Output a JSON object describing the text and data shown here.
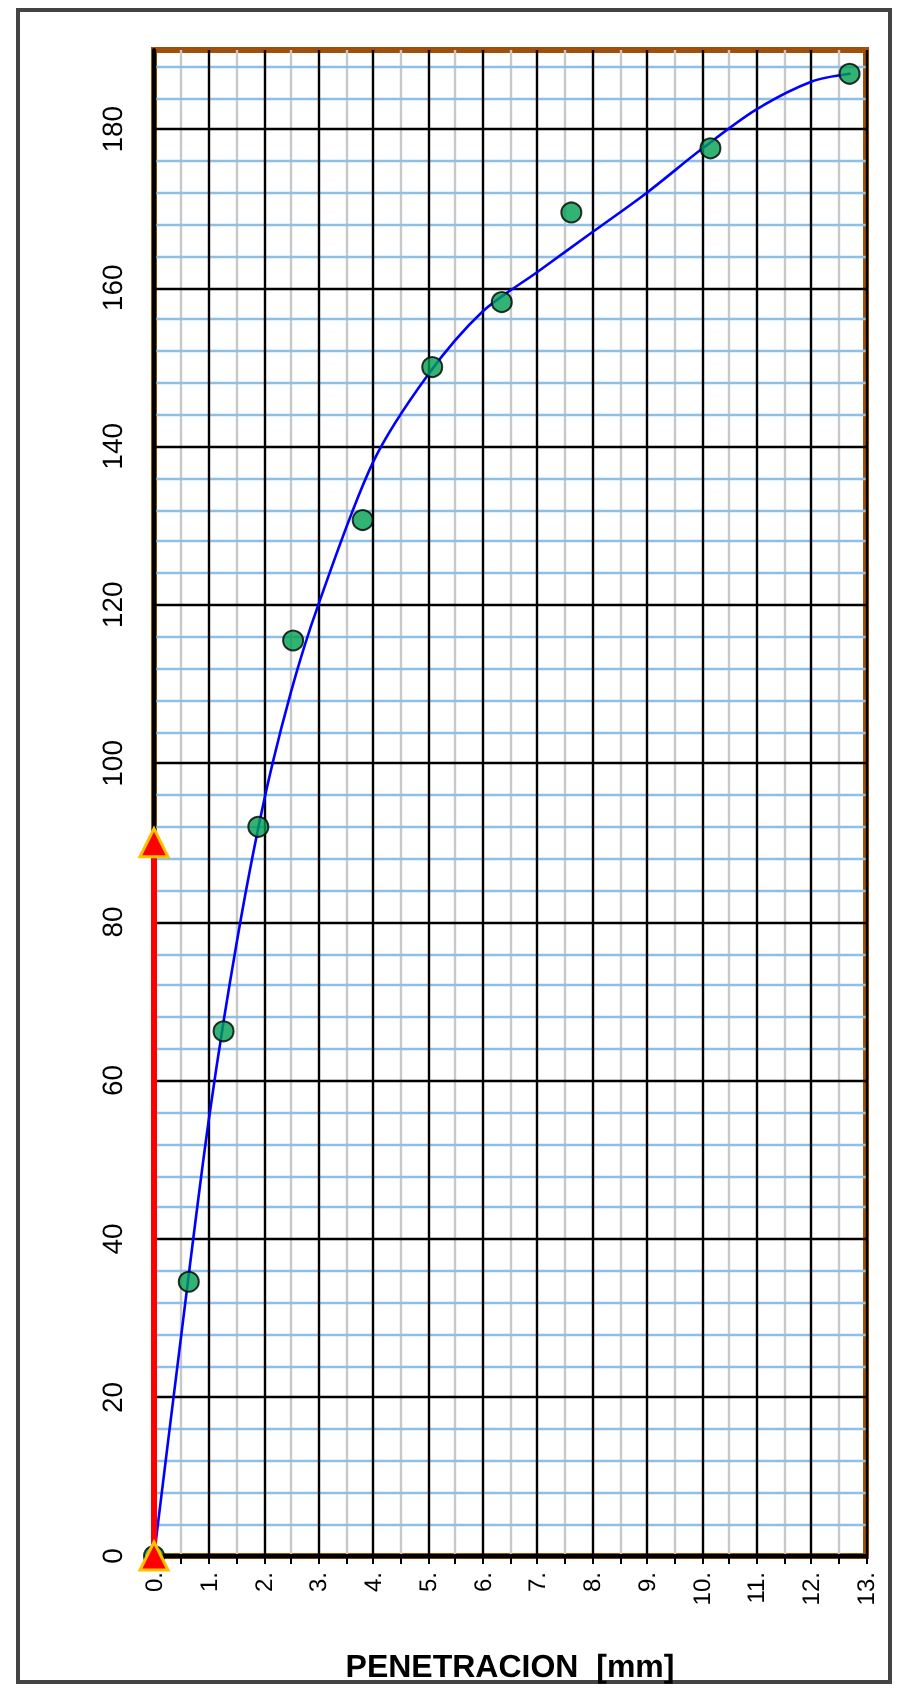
{
  "chart_data": {
    "type": "scatter",
    "xlabel": "PENETRACION  [mm]",
    "series": [
      {
        "type": "line",
        "color": "#0000ff",
        "marker": "none",
        "x": [
          0,
          0.5,
          1,
          1.5,
          2,
          2.5,
          3,
          4,
          5,
          6,
          7,
          8,
          9,
          10,
          11,
          12,
          12.7
        ],
        "values": [
          0,
          28,
          55,
          77,
          95,
          109,
          120,
          138,
          149,
          157,
          162,
          167,
          172,
          177.5,
          182.5,
          186,
          187
        ]
      },
      {
        "color": "#00a050",
        "marker": "circle",
        "x": [
          0,
          0.635,
          1.27,
          1.905,
          2.54,
          3.81,
          5.08,
          6.35,
          7.62,
          10.16,
          12.7
        ],
        "values": [
          0,
          34.6,
          66.2,
          92,
          115.5,
          130.7,
          150,
          158.2,
          169.5,
          177.6,
          187
        ]
      },
      {
        "type": "line",
        "color": "#ff0000",
        "marker": "triangle",
        "x": [
          0,
          0
        ],
        "values": [
          0,
          90
        ]
      }
    ],
    "xlim": [
      0,
      13
    ],
    "ylim": [
      0,
      190
    ],
    "xticks": [
      {
        "value": 0,
        "label": "0."
      },
      {
        "value": 0.5,
        "label": null
      },
      {
        "value": 1,
        "label": "1."
      },
      {
        "value": 1.5,
        "label": null
      },
      {
        "value": 2,
        "label": "2."
      },
      {
        "value": 2.5,
        "label": null
      },
      {
        "value": 3,
        "label": "3."
      },
      {
        "value": 3.5,
        "label": null
      },
      {
        "value": 4,
        "label": "4."
      },
      {
        "value": 4.5,
        "label": null
      },
      {
        "value": 5,
        "label": "5."
      },
      {
        "value": 5.5,
        "label": null
      },
      {
        "value": 6,
        "label": "6."
      },
      {
        "value": 6.5,
        "label": null
      },
      {
        "value": 7,
        "label": "7."
      },
      {
        "value": 7.5,
        "label": null
      },
      {
        "value": 8,
        "label": "8."
      },
      {
        "value": 8.5,
        "label": null
      },
      {
        "value": 9,
        "label": "9."
      },
      {
        "value": 9.5,
        "label": null
      },
      {
        "value": 10,
        "label": "10."
      },
      {
        "value": 10.5,
        "label": null
      },
      {
        "value": 11,
        "label": "11."
      },
      {
        "value": 11.5,
        "label": null
      },
      {
        "value": 12,
        "label": "12."
      },
      {
        "value": 12.5,
        "label": null
      },
      {
        "value": 13,
        "label": "13."
      }
    ],
    "yticks": [
      0,
      {
        "value": 4,
        "label": null
      },
      {
        "value": 8,
        "label": null
      },
      {
        "value": 12,
        "label": null
      },
      {
        "value": 16,
        "label": null
      },
      20,
      {
        "value": 24,
        "label": null
      },
      {
        "value": 28,
        "label": null
      },
      {
        "value": 32,
        "label": null
      },
      {
        "value": 36,
        "label": null
      },
      40,
      {
        "value": 44,
        "label": null
      },
      {
        "value": 48,
        "label": null
      },
      {
        "value": 52,
        "label": null
      },
      {
        "value": 56,
        "label": null
      },
      60,
      {
        "value": 64,
        "label": null
      },
      {
        "value": 68,
        "label": null
      },
      {
        "value": 72,
        "label": null
      },
      {
        "value": 76,
        "label": null
      },
      80,
      {
        "value": 84,
        "label": null
      },
      {
        "value": 88,
        "label": null
      },
      {
        "value": 92,
        "label": null
      },
      {
        "value": 96,
        "label": null
      },
      100,
      {
        "value": 104,
        "label": null
      },
      {
        "value": 108,
        "label": null
      },
      {
        "value": 112,
        "label": null
      },
      {
        "value": 116,
        "label": null
      },
      120,
      {
        "value": 124,
        "label": null
      },
      {
        "value": 128,
        "label": null
      },
      {
        "value": 132,
        "label": null
      },
      {
        "value": 136,
        "label": null
      },
      140,
      {
        "value": 144,
        "label": null
      },
      {
        "value": 148,
        "label": null
      },
      {
        "value": 152,
        "label": null
      },
      {
        "value": 156,
        "label": null
      },
      160,
      {
        "value": 164,
        "label": null
      },
      {
        "value": 168,
        "label": null
      },
      {
        "value": 172,
        "label": null
      },
      {
        "value": 176,
        "label": null
      },
      180,
      {
        "value": 184,
        "label": null
      },
      {
        "value": 188,
        "label": null
      }
    ],
    "grid": true
  }
}
